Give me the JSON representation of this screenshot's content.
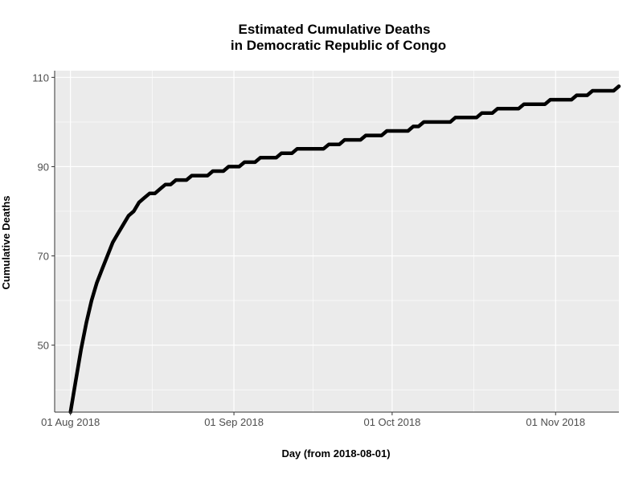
{
  "chart_data": {
    "type": "line",
    "title_lines": [
      "Estimated Cumulative Deaths",
      "in Democratic Republic of Congo"
    ],
    "xlabel": "Day (from 2018-08-01)",
    "ylabel": "Cumulative Deaths",
    "x_ticks": [
      {
        "date": "2018-08-01",
        "label": "01 Aug 2018"
      },
      {
        "date": "2018-09-01",
        "label": "01 Sep 2018"
      },
      {
        "date": "2018-10-01",
        "label": "01 Oct 2018"
      },
      {
        "date": "2018-11-01",
        "label": "01 Nov 2018"
      }
    ],
    "y_ticks": [
      50,
      70,
      90,
      110
    ],
    "xlim": [
      "2018-07-29",
      "2018-11-13"
    ],
    "ylim": [
      35,
      111.5
    ],
    "grid": true,
    "legend": "none",
    "colors": {
      "panel": "#EBEBEB",
      "grid": "#FFFFFF",
      "line": "#000000",
      "axis": "#333333"
    },
    "series": [
      {
        "points": [
          [
            "2018-08-01",
            35
          ],
          [
            "2018-08-02",
            42
          ],
          [
            "2018-08-03",
            49
          ],
          [
            "2018-08-04",
            55
          ],
          [
            "2018-08-05",
            60
          ],
          [
            "2018-08-06",
            64
          ],
          [
            "2018-08-07",
            67
          ],
          [
            "2018-08-08",
            70
          ],
          [
            "2018-08-09",
            73
          ],
          [
            "2018-08-10",
            75
          ],
          [
            "2018-08-11",
            77
          ],
          [
            "2018-08-12",
            79
          ],
          [
            "2018-08-13",
            80
          ],
          [
            "2018-08-14",
            82
          ],
          [
            "2018-08-15",
            83
          ],
          [
            "2018-08-16",
            84
          ],
          [
            "2018-08-17",
            84
          ],
          [
            "2018-08-18",
            85
          ],
          [
            "2018-08-19",
            86
          ],
          [
            "2018-08-20",
            86
          ],
          [
            "2018-08-21",
            87
          ],
          [
            "2018-08-23",
            87
          ],
          [
            "2018-08-24",
            88
          ],
          [
            "2018-08-26",
            88
          ],
          [
            "2018-08-27",
            88
          ],
          [
            "2018-08-28",
            89
          ],
          [
            "2018-08-30",
            89
          ],
          [
            "2018-08-31",
            90
          ],
          [
            "2018-09-02",
            90
          ],
          [
            "2018-09-03",
            91
          ],
          [
            "2018-09-05",
            91
          ],
          [
            "2018-09-06",
            92
          ],
          [
            "2018-09-09",
            92
          ],
          [
            "2018-09-10",
            93
          ],
          [
            "2018-09-12",
            93
          ],
          [
            "2018-09-13",
            94
          ],
          [
            "2018-09-18",
            94
          ],
          [
            "2018-09-19",
            95
          ],
          [
            "2018-09-21",
            95
          ],
          [
            "2018-09-22",
            96
          ],
          [
            "2018-09-25",
            96
          ],
          [
            "2018-09-26",
            97
          ],
          [
            "2018-09-29",
            97
          ],
          [
            "2018-09-30",
            98
          ],
          [
            "2018-10-04",
            98
          ],
          [
            "2018-10-05",
            99
          ],
          [
            "2018-10-06",
            99
          ],
          [
            "2018-10-07",
            100
          ],
          [
            "2018-10-12",
            100
          ],
          [
            "2018-10-13",
            101
          ],
          [
            "2018-10-17",
            101
          ],
          [
            "2018-10-18",
            102
          ],
          [
            "2018-10-20",
            102
          ],
          [
            "2018-10-21",
            103
          ],
          [
            "2018-10-25",
            103
          ],
          [
            "2018-10-26",
            104
          ],
          [
            "2018-10-30",
            104
          ],
          [
            "2018-10-31",
            105
          ],
          [
            "2018-11-04",
            105
          ],
          [
            "2018-11-05",
            106
          ],
          [
            "2018-11-07",
            106
          ],
          [
            "2018-11-08",
            107
          ],
          [
            "2018-11-12",
            107
          ],
          [
            "2018-11-13",
            108
          ]
        ]
      }
    ]
  }
}
